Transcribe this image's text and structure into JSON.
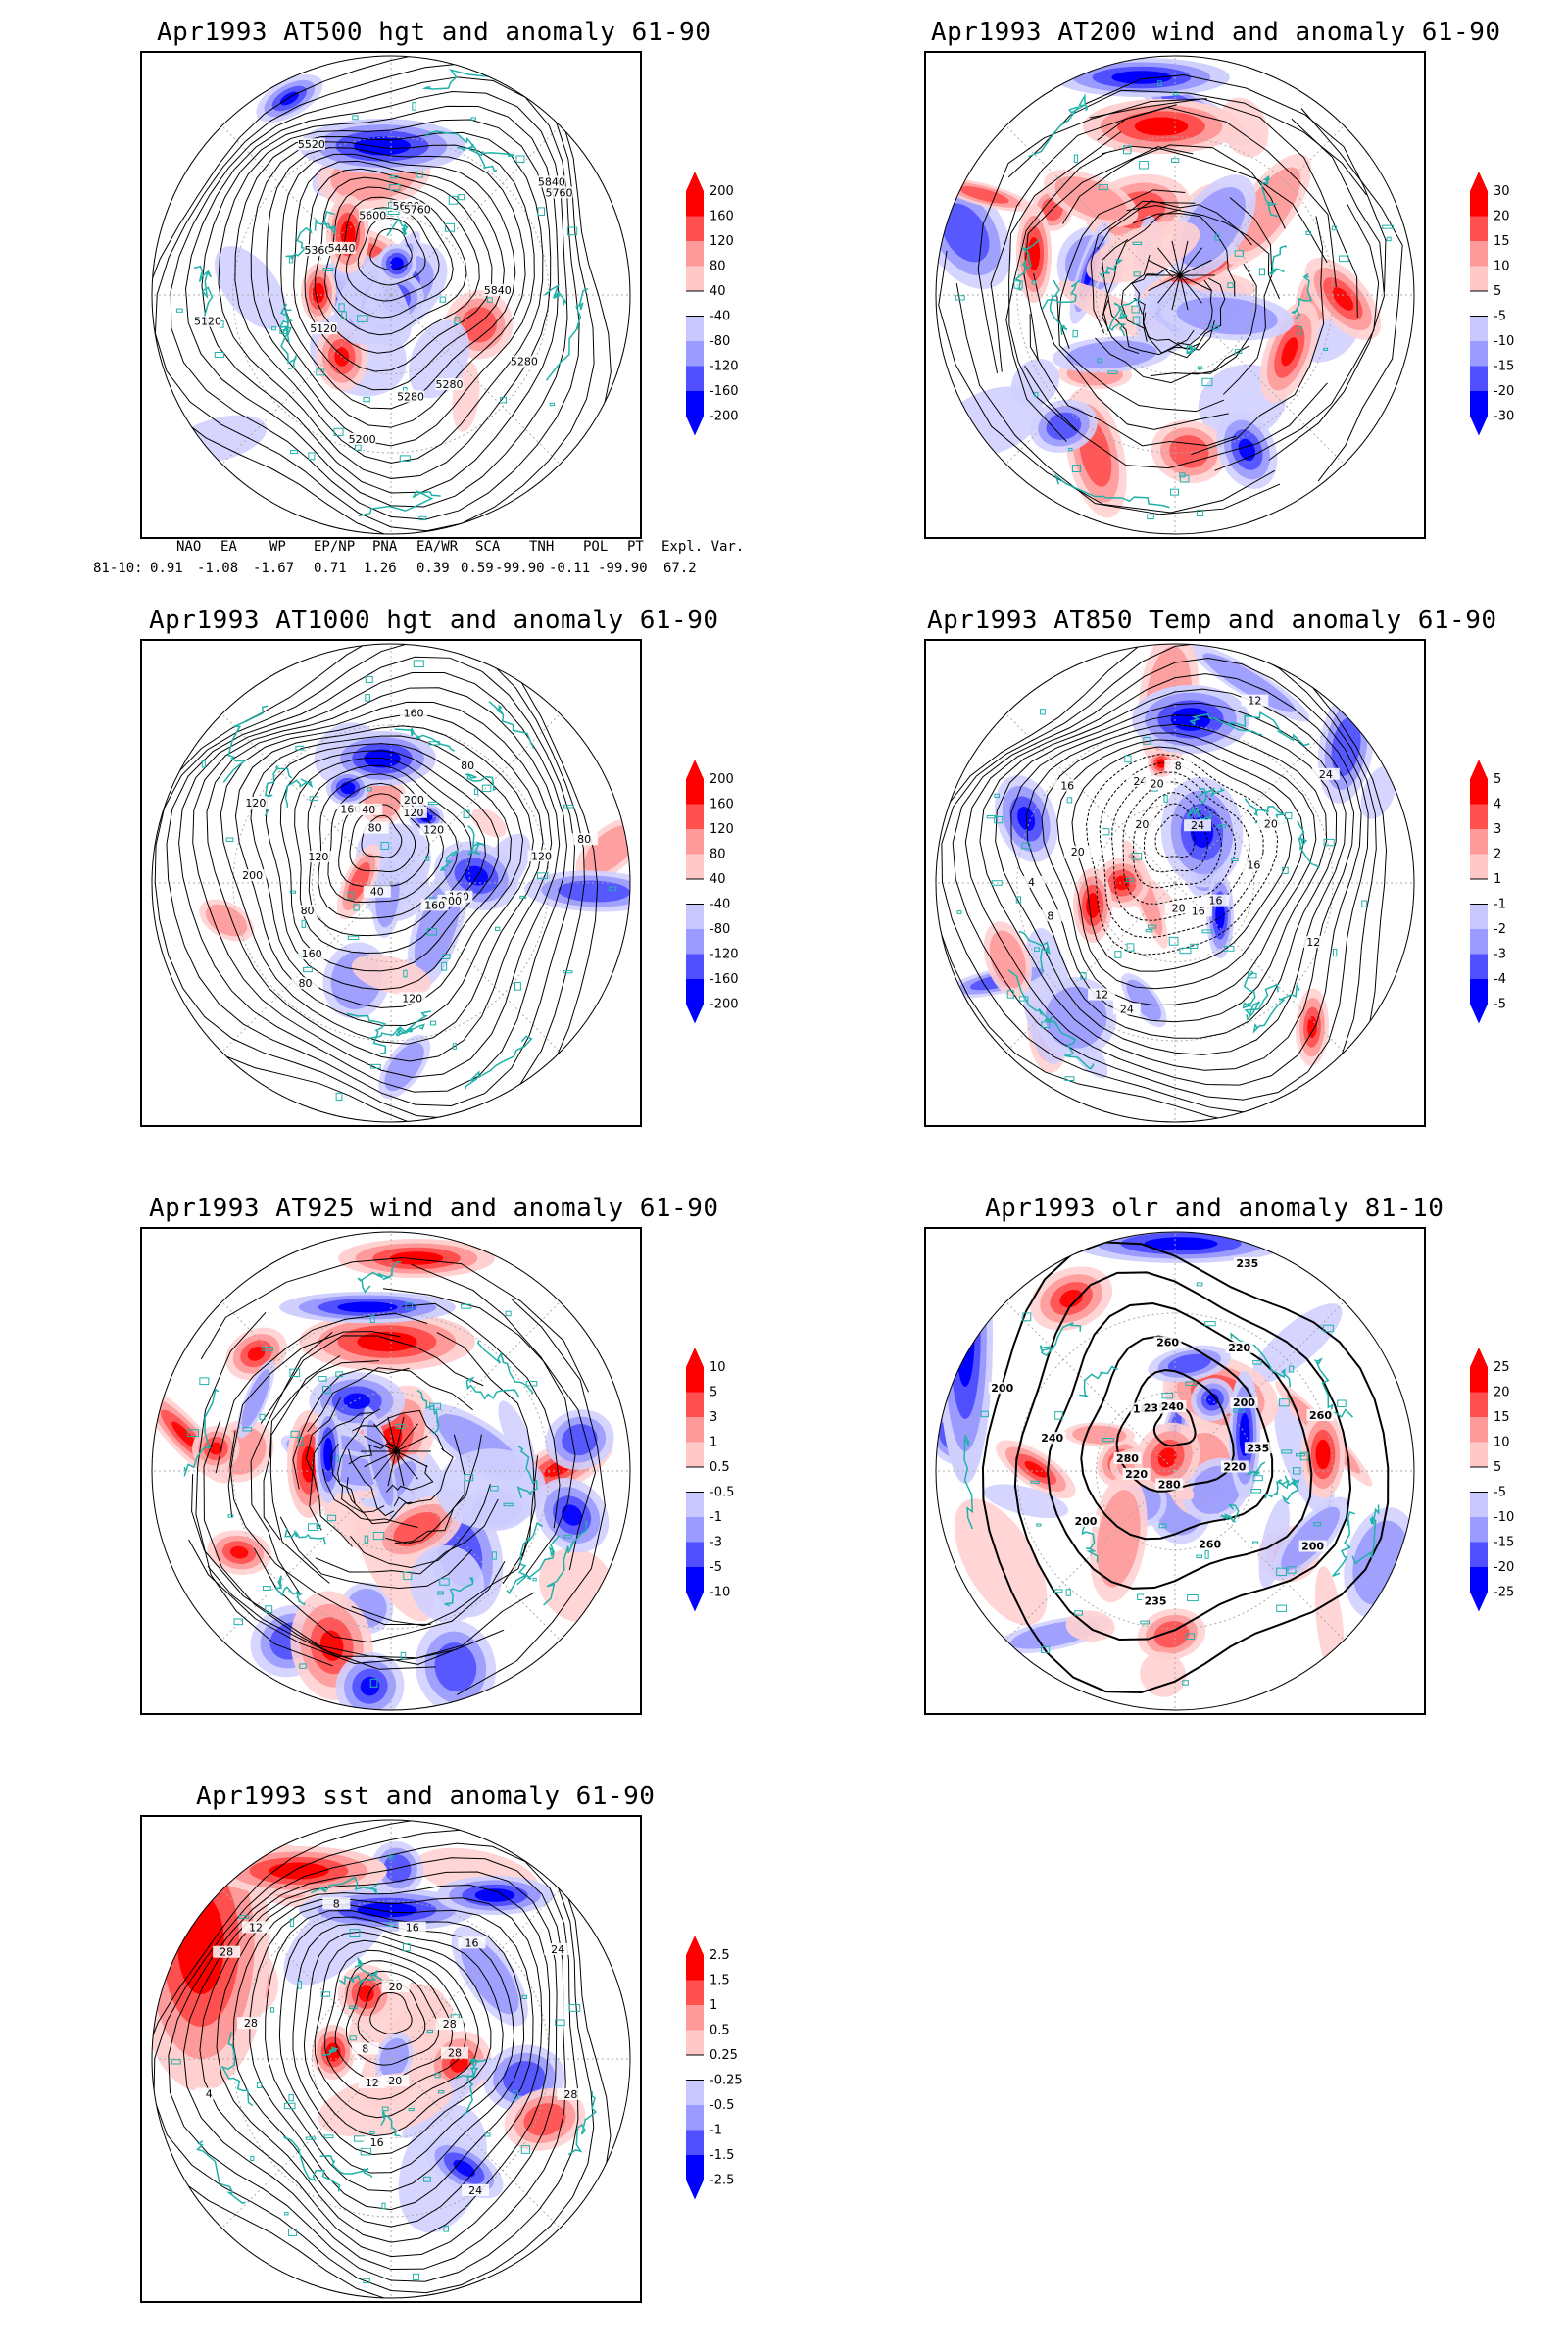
{
  "panels": [
    {
      "id": "p1",
      "title": "Apr1993 AT500 hgt and anomaly 61-90",
      "type": "hgt",
      "grad_labels": [
        "200",
        "160",
        "120",
        "80",
        "40",
        "-40",
        "-80",
        "-120",
        "-160",
        "-200"
      ],
      "contour_labels": [
        "5840",
        "5280",
        "5280",
        "5280",
        "5200",
        "5120",
        "5120",
        "5360",
        "5440",
        "5520",
        "5600",
        "5680",
        "5760",
        "5840",
        "5760"
      ]
    },
    {
      "id": "p2",
      "title": "Apr1993 AT200 wind and anomaly 61-90",
      "type": "wind",
      "grad_labels": [
        "30",
        "20",
        "15",
        "10",
        "5",
        "-5",
        "-10",
        "-15",
        "-20",
        "-30"
      ],
      "contour_labels": []
    },
    {
      "id": "p3",
      "title": "Apr1993 AT1000 hgt and anomaly 61-90",
      "type": "hgt",
      "grad_labels": [
        "200",
        "160",
        "120",
        "80",
        "40",
        "-40",
        "-80",
        "-120",
        "-160",
        "-200"
      ],
      "contour_labels": [
        "120",
        "160",
        "200",
        "160",
        "120",
        "40",
        "80",
        "160",
        "80",
        "200",
        "120",
        "120",
        "160",
        "80",
        "40",
        "160",
        "200",
        "120",
        "80",
        "120",
        "80"
      ]
    },
    {
      "id": "p4",
      "title": "Apr1993 AT850 Temp and anomaly 61-90",
      "type": "temp",
      "grad_labels": [
        "5",
        "4",
        "3",
        "2",
        "1",
        "-1",
        "-2",
        "-3",
        "-4",
        "-5"
      ],
      "contour_labels": [
        "16",
        "12",
        "16",
        "16",
        "20",
        "24",
        "12",
        "8",
        "4",
        "20",
        "16",
        "20",
        "24",
        "20",
        "8",
        "12",
        "24",
        "24",
        "20"
      ]
    },
    {
      "id": "p5",
      "title": "Apr1993 AT925 wind and anomaly 61-90",
      "type": "wind",
      "grad_labels": [
        "10",
        "5",
        "3",
        "1",
        "0.5",
        "-0.5",
        "-1",
        "-3",
        "-5",
        "-10"
      ],
      "contour_labels": []
    },
    {
      "id": "p6",
      "title": "Apr1993 olr and anomaly 81-10",
      "type": "olr",
      "grad_labels": [
        "25",
        "20",
        "15",
        "10",
        "5",
        "-5",
        "-10",
        "-15",
        "-20",
        "-25"
      ],
      "contour_labels": [
        "235",
        "220",
        "200",
        "260",
        "280",
        "235",
        "220",
        "200",
        "280",
        "240",
        "200",
        "180",
        "235",
        "260",
        "240",
        "235",
        "220",
        "200",
        "260"
      ]
    },
    {
      "id": "p7",
      "title": "Apr1993 sst and anomaly 61-90",
      "type": "sst",
      "grad_labels": [
        "2.5",
        "1.5",
        "1",
        "0.5",
        "0.25",
        "-0.25",
        "-0.5",
        "-1",
        "-1.5",
        "-2.5"
      ],
      "contour_labels": [
        "28",
        "28",
        "24",
        "20",
        "16",
        "12",
        "8",
        "4",
        "28",
        "28",
        "12",
        "8",
        "20",
        "16",
        "16",
        "24",
        "28"
      ]
    }
  ],
  "teleconnection": {
    "headers": [
      "NAO",
      "EA",
      "WP",
      "EP/NP",
      "PNA",
      "EA/WR",
      "SCA",
      "TNH",
      "POL",
      "PT",
      "Expl. Var."
    ],
    "row_label": "81-10:",
    "values": [
      "0.91",
      "-1.08",
      "-1.67",
      "0.71",
      "1.26",
      "0.39",
      "0.59",
      "-99.90",
      "-0.11",
      "-99.90",
      "67.2"
    ]
  },
  "colors": {
    "land": "#20b2aa",
    "positive": "#ff0000",
    "negative": "#0000ff",
    "contour": "#000000"
  }
}
